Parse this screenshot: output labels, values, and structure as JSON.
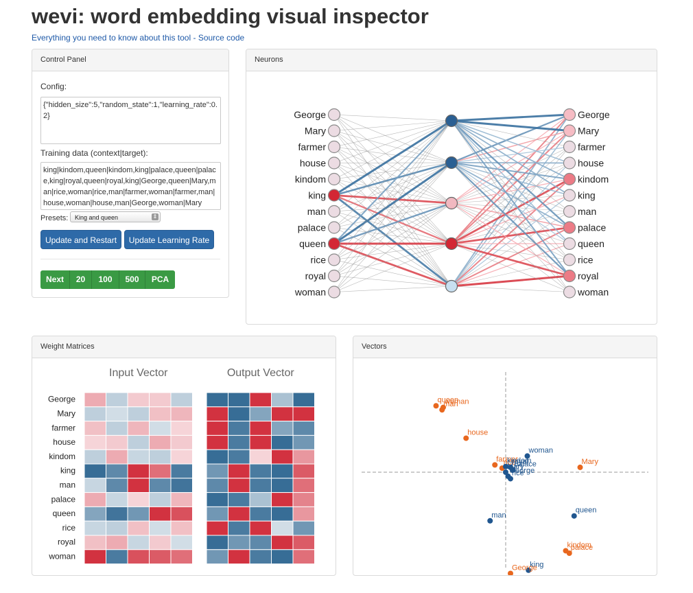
{
  "page": {
    "title": "wevi: word embedding visual inspector",
    "link_about": "Everything you need to know about this tool",
    "link_sep": " - ",
    "link_source": "Source code"
  },
  "control_panel": {
    "title": "Control Panel",
    "config_label": "Config:",
    "config_value": "{\"hidden_size\":5,\"random_state\":1,\"learning_rate\":0.2}",
    "training_label": "Training data (context|target):",
    "training_value": "king|kindom,queen|kindom,king|palace,queen|palace,king|royal,queen|royal,king|George,queen|Mary,man|rice,woman|rice,man|farmer,woman|farmer,man|house,woman|house,man|George,woman|Mary",
    "presets_label": "Presets:",
    "presets_selected": "King and queen",
    "update_restart": "Update and Restart",
    "update_lr": "Update Learning Rate",
    "step_buttons": [
      "Next",
      "20",
      "100",
      "500",
      "PCA"
    ]
  },
  "neurons": {
    "title": "Neurons",
    "input_words": [
      "George",
      "Mary",
      "farmer",
      "house",
      "kindom",
      "king",
      "man",
      "palace",
      "queen",
      "rice",
      "royal",
      "woman"
    ],
    "output_words": [
      "George",
      "Mary",
      "farmer",
      "house",
      "kindom",
      "king",
      "man",
      "palace",
      "queen",
      "rice",
      "royal",
      "woman"
    ],
    "input_colors": [
      "#ecdce3",
      "#ecdce3",
      "#ecdce3",
      "#ecdce3",
      "#ecdce3",
      "#d32734",
      "#ecdce3",
      "#ecdce3",
      "#d32734",
      "#ecdce3",
      "#ecdce3",
      "#ecdce3"
    ],
    "hidden_colors": [
      "#2a5f93",
      "#2a5f93",
      "#f1b8c0",
      "#d32734",
      "#c8dff0"
    ],
    "output_colors": [
      "#f6bcc4",
      "#f6bcc4",
      "#ecdce3",
      "#ecdce3",
      "#ec7b86",
      "#ecdce3",
      "#ecdce3",
      "#ec7b86",
      "#ecdce3",
      "#ecdce3",
      "#ec7b86",
      "#ecdce3"
    ],
    "active_inputs": [
      5,
      8
    ],
    "input_hidden_weights": [
      [
        0.1,
        -0.2,
        0.1,
        0.1,
        0.2
      ],
      [
        -0.2,
        0.1,
        0.1,
        -0.1,
        0.1
      ],
      [
        0.1,
        0.1,
        -0.1,
        0.1,
        0.1
      ],
      [
        -0.1,
        0.1,
        0.2,
        0.1,
        0.1
      ],
      [
        0.1,
        0.2,
        0.1,
        -0.1,
        0.1
      ],
      [
        -0.9,
        -0.7,
        0.8,
        0.6,
        -0.8
      ],
      [
        0.1,
        -0.1,
        0.1,
        0.1,
        0.1
      ],
      [
        0.2,
        0.1,
        0.1,
        -0.1,
        0.1
      ],
      [
        -0.5,
        -0.9,
        -0.6,
        0.9,
        0.8
      ],
      [
        0.1,
        0.1,
        0.1,
        -0.1,
        0.1
      ],
      [
        0.1,
        -0.1,
        0.1,
        0.1,
        0.1
      ],
      [
        0.1,
        0.1,
        -0.1,
        0.1,
        0.1
      ]
    ],
    "hidden_output_weights": [
      [
        -0.9,
        -0.6,
        0.2,
        0.5,
        -0.4
      ],
      [
        -0.9,
        0.3,
        0.2,
        0.5,
        -0.3
      ],
      [
        0.1,
        -0.2,
        0.1,
        0.1,
        -0.1
      ],
      [
        -0.3,
        -0.4,
        0.1,
        0.1,
        -0.2
      ],
      [
        -0.4,
        -0.5,
        0.2,
        0.8,
        0.5
      ],
      [
        -0.4,
        -0.3,
        0.1,
        0.2,
        -0.2
      ],
      [
        0.1,
        -0.1,
        0.1,
        0.1,
        -0.1
      ],
      [
        -0.6,
        -0.4,
        0.3,
        0.8,
        0.5
      ],
      [
        -0.3,
        -0.2,
        0.1,
        0.2,
        0.2
      ],
      [
        0.1,
        -0.1,
        0.1,
        0.1,
        -0.1
      ],
      [
        -0.5,
        -0.6,
        0.2,
        0.8,
        0.9
      ],
      [
        0.1,
        -0.1,
        0.1,
        0.1,
        -0.1
      ]
    ]
  },
  "weights": {
    "title": "Weight Matrices",
    "input_title": "Input Vector",
    "output_title": "Output Vector",
    "rows": [
      "George",
      "Mary",
      "farmer",
      "house",
      "kindom",
      "king",
      "man",
      "palace",
      "queen",
      "rice",
      "royal",
      "woman"
    ],
    "input_matrix": [
      [
        0.3,
        -0.2,
        0.15,
        0.15,
        -0.2
      ],
      [
        -0.2,
        -0.1,
        -0.2,
        0.2,
        0.25
      ],
      [
        0.2,
        -0.2,
        0.25,
        -0.1,
        0.1
      ],
      [
        0.1,
        0.15,
        -0.2,
        0.3,
        0.15
      ],
      [
        -0.2,
        0.3,
        -0.15,
        -0.2,
        0.1
      ],
      [
        -0.9,
        -0.7,
        0.9,
        0.6,
        -0.8
      ],
      [
        -0.15,
        -0.7,
        0.9,
        -0.7,
        -0.85
      ],
      [
        0.3,
        -0.15,
        0.1,
        -0.2,
        0.25
      ],
      [
        -0.5,
        -0.85,
        -0.6,
        0.9,
        0.75
      ],
      [
        -0.15,
        -0.2,
        0.2,
        -0.1,
        0.2
      ],
      [
        0.2,
        0.3,
        -0.15,
        0.15,
        -0.1
      ],
      [
        0.9,
        -0.8,
        0.75,
        0.7,
        0.6
      ]
    ],
    "output_matrix": [
      [
        -0.9,
        -0.9,
        0.9,
        -0.3,
        -0.9
      ],
      [
        0.9,
        -0.9,
        -0.5,
        0.9,
        0.9
      ],
      [
        0.9,
        -0.8,
        0.9,
        -0.5,
        -0.7
      ],
      [
        0.9,
        -0.8,
        0.9,
        -0.9,
        -0.6
      ],
      [
        -0.9,
        -0.8,
        0.1,
        0.9,
        0.4
      ],
      [
        -0.6,
        0.9,
        -0.8,
        -0.9,
        0.7
      ],
      [
        -0.7,
        0.9,
        -0.8,
        -0.9,
        0.6
      ],
      [
        -0.9,
        -0.8,
        -0.3,
        0.9,
        0.5
      ],
      [
        -0.6,
        0.9,
        -0.8,
        -0.9,
        0.4
      ],
      [
        0.9,
        -0.8,
        0.9,
        -0.1,
        -0.6
      ],
      [
        -0.9,
        -0.6,
        -0.7,
        0.9,
        0.7
      ],
      [
        -0.6,
        0.9,
        -0.8,
        -0.9,
        0.6
      ]
    ]
  },
  "vectors": {
    "title": "Vectors",
    "input_color": "#e8671e",
    "output_color": "#20568f",
    "points": [
      {
        "label": "queen",
        "x": -0.58,
        "y": 0.82,
        "kind": "input"
      },
      {
        "label": "woman",
        "x": -0.52,
        "y": 0.8,
        "kind": "input"
      },
      {
        "label": "man",
        "x": -0.53,
        "y": 0.77,
        "kind": "input"
      },
      {
        "label": "house",
        "x": -0.33,
        "y": 0.42,
        "kind": "input"
      },
      {
        "label": "farmer",
        "x": -0.09,
        "y": 0.09,
        "kind": "input"
      },
      {
        "label": "rice",
        "x": -0.03,
        "y": 0.05,
        "kind": "input"
      },
      {
        "label": "woman",
        "x": 0.18,
        "y": 0.2,
        "kind": "output"
      },
      {
        "label": "Mary",
        "x": 0.62,
        "y": 0.06,
        "kind": "input"
      },
      {
        "label": "kindom",
        "x": 0.0,
        "y": 0.07,
        "kind": "output"
      },
      {
        "label": "royal",
        "x": 0.04,
        "y": 0.06,
        "kind": "output"
      },
      {
        "label": "palace",
        "x": 0.06,
        "y": 0.03,
        "kind": "output"
      },
      {
        "label": "George",
        "x": 0.02,
        "y": -0.05,
        "kind": "output"
      },
      {
        "label": "Mary",
        "x": 0.0,
        "y": 0.0,
        "kind": "output"
      },
      {
        "label": "rice",
        "x": 0.04,
        "y": -0.08,
        "kind": "output"
      },
      {
        "label": "man",
        "x": -0.13,
        "y": -0.6,
        "kind": "output"
      },
      {
        "label": "queen",
        "x": 0.57,
        "y": -0.54,
        "kind": "output"
      },
      {
        "label": "kindom",
        "x": 0.5,
        "y": -0.97,
        "kind": "input"
      },
      {
        "label": "palace",
        "x": 0.53,
        "y": -1.0,
        "kind": "input"
      },
      {
        "label": "king",
        "x": 0.19,
        "y": -1.21,
        "kind": "output"
      },
      {
        "label": "George",
        "x": 0.04,
        "y": -1.25,
        "kind": "input"
      }
    ]
  }
}
